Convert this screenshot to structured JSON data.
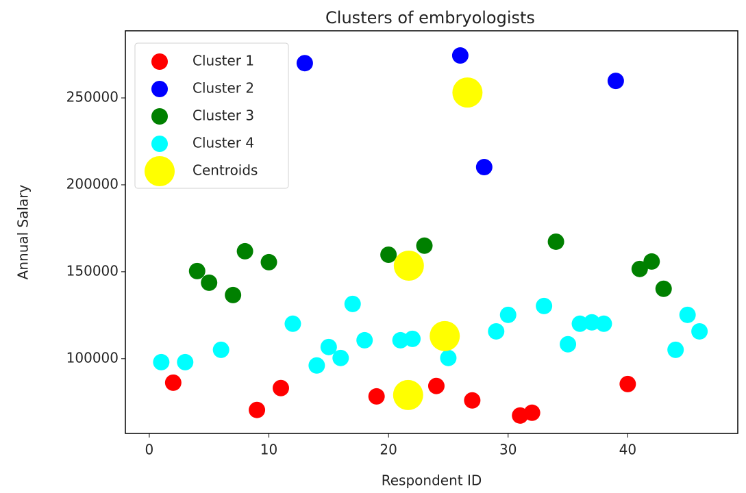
{
  "chart_data": {
    "type": "scatter",
    "title": "Clusters of embryologists",
    "x_label": "Respondent ID",
    "y_label": "Annual Salary",
    "xlim": [
      -2,
      49.2
    ],
    "ylim": [
      57000,
      288600
    ],
    "xticks": [
      0,
      10,
      20,
      30,
      40
    ],
    "yticks": [
      100000,
      150000,
      200000,
      250000
    ],
    "legend": "upper left",
    "series": [
      {
        "name": "Cluster 1",
        "color": "#ff0000",
        "x": [
          2,
          9,
          11,
          19,
          24,
          27,
          31,
          32,
          40
        ],
        "values": [
          86200,
          70500,
          83100,
          78300,
          84300,
          76000,
          67300,
          68900,
          85400
        ]
      },
      {
        "name": "Cluster 2",
        "color": "#0000ff",
        "x": [
          13,
          26,
          28,
          39
        ],
        "values": [
          270000,
          274400,
          210200,
          259800
        ]
      },
      {
        "name": "Cluster 3",
        "color": "#008000",
        "x": [
          4,
          5,
          7,
          8,
          10,
          20,
          23,
          34,
          41,
          42,
          43
        ],
        "values": [
          150400,
          143700,
          136600,
          161800,
          155500,
          159800,
          165000,
          167300,
          151600,
          155900,
          140200
        ]
      },
      {
        "name": "Cluster 4",
        "color": "#00ffff",
        "x": [
          1,
          3,
          6,
          12,
          14,
          15,
          16,
          17,
          18,
          21,
          22,
          25,
          29,
          30,
          33,
          35,
          36,
          37,
          38,
          44,
          45,
          46
        ],
        "values": [
          98000,
          98000,
          105100,
          120100,
          96100,
          106700,
          100400,
          131500,
          110600,
          110600,
          111400,
          100400,
          115700,
          125200,
          130300,
          108300,
          120100,
          120900,
          120100,
          105100,
          125200,
          115700
        ]
      },
      {
        "name": "Centroids",
        "color": "#ffff00",
        "x": [
          21.64,
          26.6,
          21.7,
          24.7
        ],
        "values": [
          79100,
          253100,
          153500,
          113000
        ]
      }
    ]
  }
}
